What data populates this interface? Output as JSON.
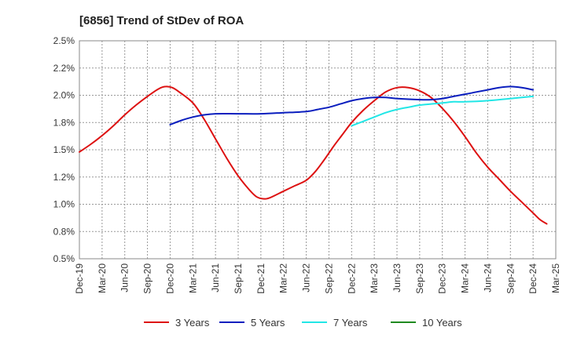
{
  "chart_data": {
    "type": "line",
    "title": "[6856]  Trend of StDev of ROA",
    "xlabel": "",
    "ylabel": "",
    "ylim": [
      0.5,
      2.5
    ],
    "yticks": [
      "0.5%",
      "0.8%",
      "1.0%",
      "1.2%",
      "1.5%",
      "1.8%",
      "2.0%",
      "2.2%",
      "2.5%"
    ],
    "categories": [
      "Dec-19",
      "Mar-20",
      "Jun-20",
      "Sep-20",
      "Dec-20",
      "Mar-21",
      "Jun-21",
      "Sep-21",
      "Dec-21",
      "Mar-22",
      "Jun-22",
      "Sep-22",
      "Dec-22",
      "Mar-23",
      "Jun-23",
      "Sep-23",
      "Dec-23",
      "Mar-24",
      "Jun-24",
      "Sep-24",
      "Dec-24",
      "Mar-25"
    ],
    "grid": true,
    "legend_position": "bottom",
    "series": [
      {
        "name": "3 Years",
        "color": "#dd1111",
        "points": [
          [
            0,
            1.48
          ],
          [
            0.5,
            1.55
          ],
          [
            1,
            1.63
          ],
          [
            1.5,
            1.72
          ],
          [
            2,
            1.82
          ],
          [
            2.5,
            1.91
          ],
          [
            3,
            1.99
          ],
          [
            3.5,
            2.06
          ],
          [
            3.8,
            2.08
          ],
          [
            4.1,
            2.07
          ],
          [
            4.4,
            2.03
          ],
          [
            5,
            1.93
          ],
          [
            5.5,
            1.78
          ],
          [
            6,
            1.6
          ],
          [
            6.5,
            1.42
          ],
          [
            7,
            1.26
          ],
          [
            7.5,
            1.13
          ],
          [
            7.8,
            1.07
          ],
          [
            8.1,
            1.05
          ],
          [
            8.4,
            1.06
          ],
          [
            9,
            1.12
          ],
          [
            9.5,
            1.17
          ],
          [
            10,
            1.22
          ],
          [
            10.4,
            1.3
          ],
          [
            10.8,
            1.41
          ],
          [
            11.2,
            1.53
          ],
          [
            11.6,
            1.64
          ],
          [
            12,
            1.75
          ],
          [
            12.5,
            1.86
          ],
          [
            13,
            1.95
          ],
          [
            13.5,
            2.03
          ],
          [
            14,
            2.07
          ],
          [
            14.5,
            2.07
          ],
          [
            15,
            2.04
          ],
          [
            15.5,
            1.98
          ],
          [
            16,
            1.88
          ],
          [
            16.5,
            1.76
          ],
          [
            17,
            1.62
          ],
          [
            17.5,
            1.47
          ],
          [
            18,
            1.34
          ],
          [
            18.5,
            1.23
          ],
          [
            19,
            1.12
          ],
          [
            19.5,
            1.02
          ],
          [
            20,
            0.92
          ],
          [
            20.3,
            0.86
          ],
          [
            20.6,
            0.82
          ]
        ]
      },
      {
        "name": "5 Years",
        "color": "#0a1ebe",
        "points": [
          [
            4,
            1.73
          ],
          [
            4.5,
            1.77
          ],
          [
            5,
            1.8
          ],
          [
            5.5,
            1.82
          ],
          [
            6,
            1.83
          ],
          [
            7,
            1.83
          ],
          [
            8,
            1.83
          ],
          [
            9,
            1.84
          ],
          [
            10,
            1.85
          ],
          [
            10.5,
            1.87
          ],
          [
            11,
            1.89
          ],
          [
            11.5,
            1.92
          ],
          [
            12,
            1.95
          ],
          [
            12.5,
            1.97
          ],
          [
            13,
            1.98
          ],
          [
            13.5,
            1.98
          ],
          [
            14,
            1.97
          ],
          [
            15,
            1.96
          ],
          [
            15.5,
            1.96
          ],
          [
            16,
            1.97
          ],
          [
            16.5,
            1.99
          ],
          [
            17,
            2.01
          ],
          [
            17.5,
            2.03
          ],
          [
            18,
            2.05
          ],
          [
            18.5,
            2.07
          ],
          [
            19,
            2.08
          ],
          [
            19.5,
            2.07
          ],
          [
            20,
            2.05
          ]
        ]
      },
      {
        "name": "7 Years",
        "color": "#22e6e6",
        "points": [
          [
            12,
            1.72
          ],
          [
            12.5,
            1.76
          ],
          [
            13,
            1.8
          ],
          [
            13.5,
            1.84
          ],
          [
            14,
            1.87
          ],
          [
            14.5,
            1.89
          ],
          [
            15,
            1.91
          ],
          [
            15.5,
            1.92
          ],
          [
            16,
            1.93
          ],
          [
            16.5,
            1.94
          ],
          [
            17,
            1.94
          ],
          [
            18,
            1.95
          ],
          [
            19,
            1.97
          ],
          [
            20,
            1.99
          ]
        ]
      },
      {
        "name": "10 Years",
        "color": "#1f8a1f",
        "points": []
      }
    ]
  }
}
